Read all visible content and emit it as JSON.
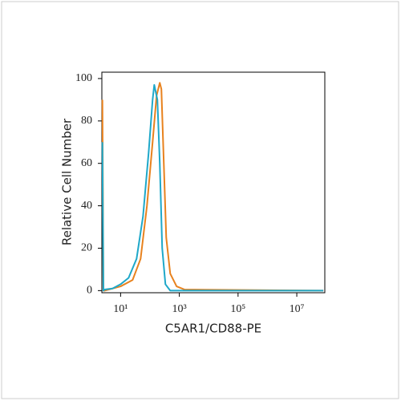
{
  "chart_data": {
    "type": "line",
    "x_label": "C5AR1/CD88-PE",
    "y_label": "Relative Cell Number",
    "x_log": true,
    "xlim": [
      2.3,
      90000000
    ],
    "ylim": [
      -1,
      103
    ],
    "xticks": [
      {
        "value": 10,
        "label": "10¹"
      },
      {
        "value": 1000,
        "label": "10³"
      },
      {
        "value": 100000,
        "label": "10⁵"
      },
      {
        "value": 10000000,
        "label": "10⁷"
      }
    ],
    "yticks": [
      0,
      20,
      40,
      60,
      80,
      100
    ],
    "series": [
      {
        "color": "#e8821e",
        "x": [
          2.4,
          2.6,
          2.85,
          10,
          25.6,
          48,
          79,
          123,
          168,
          216,
          245,
          296,
          358,
          490,
          807,
          1510,
          80000000
        ],
        "values": [
          90,
          0,
          0,
          2,
          5,
          15,
          40,
          70,
          92,
          98,
          95,
          60,
          25,
          8,
          2,
          0.5,
          0
        ]
      },
      {
        "color": "#1fa8c9",
        "x": [
          2.4,
          2.6,
          2.85,
          5.3,
          10,
          18.7,
          35,
          58,
          90,
          123,
          140,
          179,
          216,
          261,
          336,
          490,
          80000000
        ],
        "values": [
          70,
          0,
          0.5,
          1,
          3,
          6,
          15,
          35,
          65,
          90,
          97,
          90,
          60,
          20,
          3,
          0,
          0
        ]
      }
    ]
  }
}
